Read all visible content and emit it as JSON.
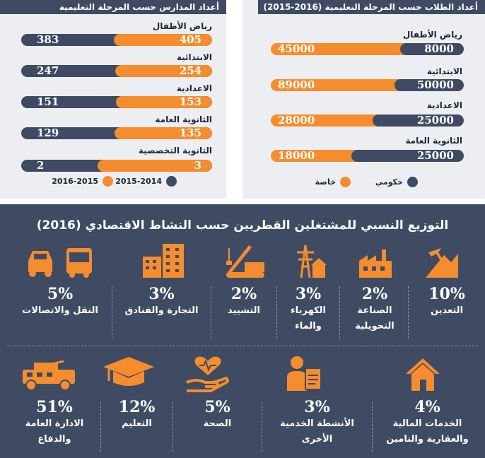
{
  "colors": {
    "orange": "#f58d2e",
    "navy": "#3e4b63",
    "panel": "#eceef2"
  },
  "left_panel": {
    "title": "أعداد المدارس حسب المرحلة التعليمية",
    "legend": {
      "a": "2015-2014",
      "b": "2016-2015"
    },
    "rows": [
      {
        "label": "رياض الأطفال",
        "a": 405,
        "b": 383
      },
      {
        "label": "الابتدائية",
        "a": 254,
        "b": 247
      },
      {
        "label": "الاعدادية",
        "a": 153,
        "b": 151
      },
      {
        "label": "الثانوية العامة",
        "a": 135,
        "b": 129
      },
      {
        "label": "الثانوية التخصصية",
        "a": 3,
        "b": 2
      }
    ]
  },
  "right_panel": {
    "title": "أعداد الطلاب حسب المرحلة التعليمية (2016-2015)",
    "legend": {
      "gov": "حكومي",
      "priv": "خاصة"
    },
    "rows": [
      {
        "label": "رياض الأطفال",
        "gov": 8000,
        "priv": 45000
      },
      {
        "label": "الابتدائية",
        "gov": 50000,
        "priv": 89000
      },
      {
        "label": "الاعدادية",
        "gov": 25000,
        "priv": 28000
      },
      {
        "label": "الثانوية العامة",
        "gov": 25000,
        "priv": 18000
      }
    ]
  },
  "chart_data": [
    {
      "type": "bar",
      "title": "أعداد المدارس حسب المرحلة التعليمية",
      "categories": [
        "رياض الأطفال",
        "الابتدائية",
        "الاعدادية",
        "الثانوية العامة",
        "الثانوية التخصصية"
      ],
      "series": [
        {
          "name": "2015-2014",
          "values": [
            405,
            254,
            153,
            135,
            3
          ]
        },
        {
          "name": "2016-2015",
          "values": [
            383,
            247,
            151,
            129,
            2
          ]
        }
      ]
    },
    {
      "type": "bar",
      "title": "أعداد الطلاب حسب المرحلة التعليمية (2016-2015)",
      "categories": [
        "رياض الأطفال",
        "الابتدائية",
        "الاعدادية",
        "الثانوية العامة"
      ],
      "series": [
        {
          "name": "حكومي",
          "values": [
            8000,
            50000,
            25000,
            25000
          ]
        },
        {
          "name": "خاصة",
          "values": [
            45000,
            89000,
            28000,
            18000
          ]
        }
      ]
    },
    {
      "type": "table",
      "title": "التوزيع النسبي للمشتغلين القطريين حسب النشاط الاقتصادي (2016)",
      "categories": [
        "التعدين",
        "الصناعة التحويلية",
        "الكهرباء والماء",
        "التشييد",
        "التجارة والفنادق",
        "النقل والاتصالات",
        "الخدمات المالية والعقارية والتامين",
        "الأنشطة الخدمية الأخرى",
        "الصحة",
        "التعليم",
        "الادارة العامة والدفاع"
      ],
      "values": [
        10,
        2,
        3,
        2,
        3,
        5,
        4,
        3,
        5,
        12,
        51
      ]
    }
  ],
  "bottom": {
    "title": "التوزيع النسبي للمشتغلين القطريين حسب النشاط الاقتصادي (2016)",
    "row1": [
      {
        "pct": "10%",
        "name": "التعدين",
        "icon": "mining-icon"
      },
      {
        "pct": "2%",
        "name": "الصناعة\nالتحويلية",
        "icon": "factory-icon"
      },
      {
        "pct": "3%",
        "name": "الكهرباء\nوالماء",
        "icon": "power-tower-icon"
      },
      {
        "pct": "2%",
        "name": "التشييد",
        "icon": "crane-icon"
      },
      {
        "pct": "3%",
        "name": "التجارة والفنادق",
        "icon": "buildings-icon"
      },
      {
        "pct": "5%",
        "name": "النقل والاتصالات",
        "icon": "car-bus-icon"
      }
    ],
    "row2": [
      {
        "pct": "4%",
        "name": "الخدمات المالية\nوالعقارية والتامين",
        "icon": "house-icon"
      },
      {
        "pct": "3%",
        "name": "الأنشطة الخدمية\nالأخرى",
        "icon": "worker-clipboard-icon"
      },
      {
        "pct": "5%",
        "name": "الصحة",
        "icon": "heart-hand-icon"
      },
      {
        "pct": "12%",
        "name": "التعليم",
        "icon": "graduation-cap-icon"
      },
      {
        "pct": "51%",
        "name": "الادارة العامة\nوالدفاع",
        "icon": "military-vehicle-icon"
      }
    ]
  }
}
